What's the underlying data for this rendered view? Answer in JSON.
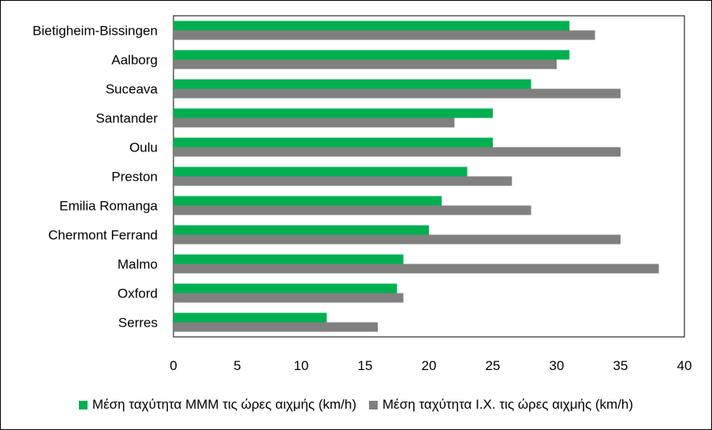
{
  "chart_data": {
    "type": "bar",
    "orientation": "horizontal",
    "categories": [
      "Bietigheim-Bissingen",
      "Aalborg",
      "Suceava",
      "Santander",
      "Oulu",
      "Preston",
      "Emilia Romanga",
      "Chermont Ferrand",
      "Malmo",
      "Oxford",
      "Serres"
    ],
    "series": [
      {
        "name": "Μέση ταχύτητα ΜΜΜ τις ώρες αιχμής (km/h)",
        "color": "#00B050",
        "values": [
          31,
          31,
          28,
          25,
          25,
          23,
          21,
          20,
          18,
          17.5,
          12
        ]
      },
      {
        "name": "Μέση ταχύτητα Ι.Χ. τις ώρες αιχμής (km/h)",
        "color": "#808080",
        "values": [
          33,
          30,
          35,
          22,
          35,
          26.5,
          28,
          35,
          38,
          18,
          16
        ]
      }
    ],
    "xlim": [
      0,
      40
    ],
    "xticks": [
      "0",
      "5",
      "10",
      "15",
      "20",
      "25",
      "30",
      "35",
      "40"
    ],
    "legend_position": "bottom",
    "grid": false
  }
}
